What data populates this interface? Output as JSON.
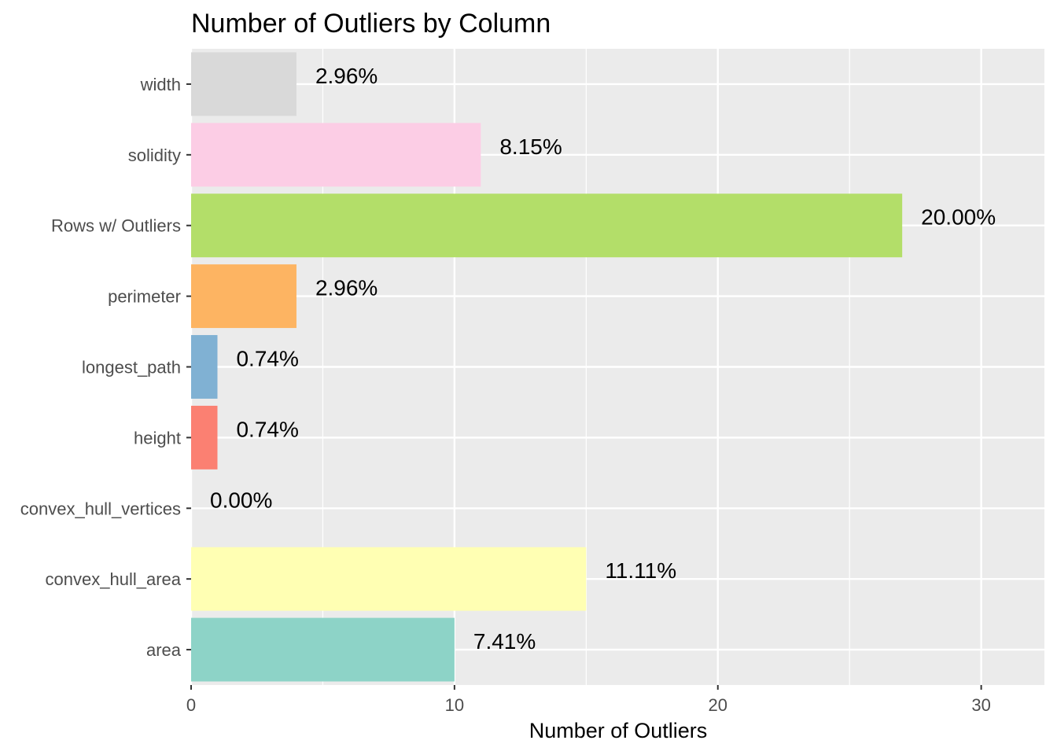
{
  "chart_data": {
    "type": "bar",
    "orientation": "horizontal",
    "title": "Number of Outliers by Column",
    "xlabel": "Number of Outliers",
    "ylabel": "",
    "xlim": [
      0,
      32.4
    ],
    "x_ticks": [
      0,
      10,
      20,
      30
    ],
    "x_tick_labels": [
      "0",
      "10",
      "20",
      "30"
    ],
    "grid": true,
    "legend": "none",
    "panel_background": "#ebebeb",
    "grid_color": "#ffffff",
    "categories": [
      "area",
      "convex_hull_area",
      "convex_hull_vertices",
      "height",
      "longest_path",
      "perimeter",
      "Rows w/ Outliers",
      "solidity",
      "width"
    ],
    "values": [
      10,
      15,
      0,
      1,
      1,
      4,
      27,
      11,
      4
    ],
    "data_labels": [
      "7.41%",
      "11.11%",
      "0.00%",
      "0.74%",
      "0.74%",
      "2.96%",
      "20.00%",
      "8.15%",
      "2.96%"
    ],
    "colors": [
      "#8dd3c7",
      "#ffffb3",
      "#bebada",
      "#fb8072",
      "#80b1d3",
      "#fdb462",
      "#b3de69",
      "#fccde5",
      "#d9d9d9"
    ]
  }
}
